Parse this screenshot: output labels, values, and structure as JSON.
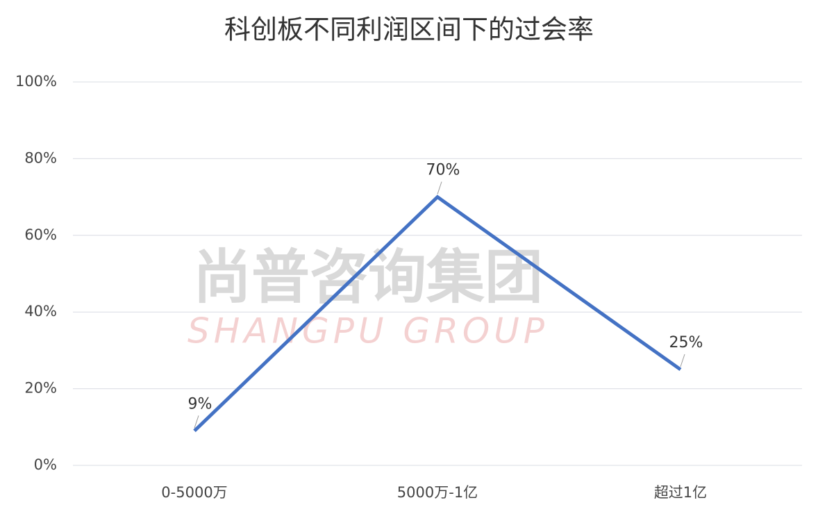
{
  "chart_data": {
    "type": "line",
    "title": "科创板不同利润区间下的过会率",
    "annotations": [
      "尚普咨询集团",
      "SHANGPU GROUP"
    ],
    "categories": [
      "0-5000万",
      "5000万-1亿",
      "超过1亿"
    ],
    "values": [
      9,
      70,
      25
    ],
    "value_labels": [
      "9%",
      "70%",
      "25%"
    ],
    "color": "#4472c4",
    "ylim": [
      0,
      100
    ],
    "yticks": [
      {
        "value": 0,
        "label": "0%"
      },
      {
        "value": 20,
        "label": "20%"
      },
      {
        "value": 40,
        "label": "40%"
      },
      {
        "value": 60,
        "label": "60%"
      },
      {
        "value": 80,
        "label": "80%"
      },
      {
        "value": 100,
        "label": "100%"
      }
    ],
    "grid": true
  }
}
